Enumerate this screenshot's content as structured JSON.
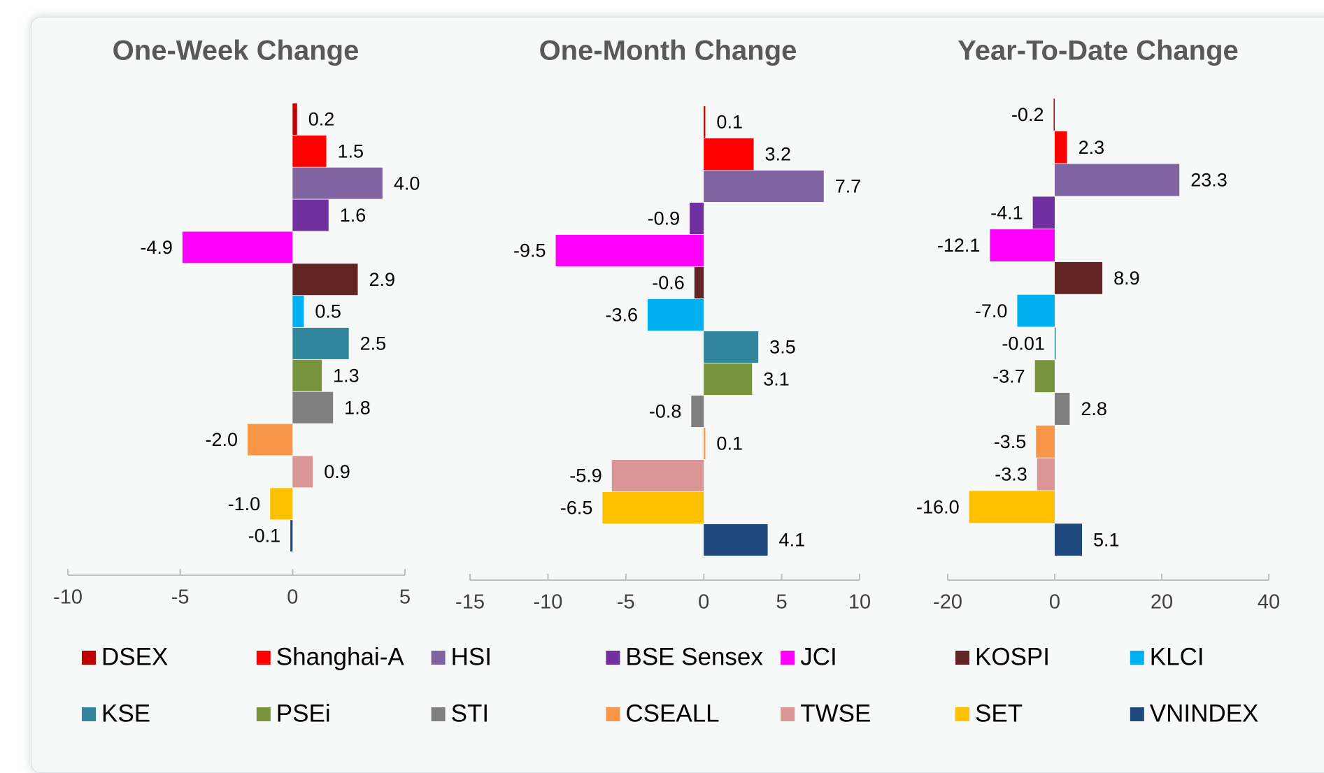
{
  "legend": {
    "items": [
      {
        "name": "DSEX",
        "color": "#c00000"
      },
      {
        "name": "Shanghai-A",
        "color": "#ff0000"
      },
      {
        "name": "HSI",
        "color": "#8064a2"
      },
      {
        "name": "BSE Sensex",
        "color": "#7030a0"
      },
      {
        "name": "JCI",
        "color": "#ff00ff"
      },
      {
        "name": "KOSPI",
        "color": "#632523"
      },
      {
        "name": "KLCI",
        "color": "#00b0f0"
      },
      {
        "name": "KSE",
        "color": "#31859c"
      },
      {
        "name": "PSEi",
        "color": "#77933c"
      },
      {
        "name": "STI",
        "color": "#7f7f7f"
      },
      {
        "name": "CSEALL",
        "color": "#f79646"
      },
      {
        "name": "TWSE",
        "color": "#d99694"
      },
      {
        "name": "SET",
        "color": "#ffc000"
      },
      {
        "name": "VNINDEX",
        "color": "#1f497d"
      }
    ]
  },
  "chart_data": [
    {
      "type": "hbar",
      "title": "One-Week Change",
      "values": [
        0.2,
        1.5,
        4.0,
        1.6,
        -4.9,
        2.9,
        0.5,
        2.5,
        1.3,
        1.8,
        -2.0,
        0.9,
        -1.0,
        -0.1
      ],
      "value_labels": [
        "0.2",
        "1.5",
        "4.0",
        "1.6",
        "-4.9",
        "2.9",
        "0.5",
        "2.5",
        "1.3",
        "1.8",
        "-2.0",
        "0.9",
        "-1.0",
        "-0.1"
      ],
      "xlim": [
        -10,
        5
      ],
      "xticks": [
        -10,
        -5,
        0,
        5
      ]
    },
    {
      "type": "hbar",
      "title": "One-Month Change",
      "values": [
        0.1,
        3.2,
        7.7,
        -0.9,
        -9.5,
        -0.6,
        -3.6,
        3.5,
        3.1,
        -0.8,
        0.1,
        -5.9,
        -6.5,
        4.1
      ],
      "value_labels": [
        "0.1",
        "3.2",
        "7.7",
        "-0.9",
        "-9.5",
        "-0.6",
        "-3.6",
        "3.5",
        "3.1",
        "-0.8",
        "0.1",
        "-5.9",
        "-6.5",
        "4.1"
      ],
      "xlim": [
        -15,
        10
      ],
      "xticks": [
        -15,
        -10,
        -5,
        0,
        5,
        10
      ]
    },
    {
      "type": "hbar",
      "title": "Year-To-Date Change",
      "values": [
        -0.2,
        2.3,
        23.3,
        -4.1,
        -12.1,
        8.9,
        -7.0,
        -0.01,
        -3.7,
        2.8,
        -3.5,
        -3.3,
        -16.0,
        5.1
      ],
      "value_labels": [
        "-0.2",
        "2.3",
        "23.3",
        "-4.1",
        "-12.1",
        "8.9",
        "-7.0",
        "-0.01",
        "-3.7",
        "2.8",
        "-3.5",
        "-3.3",
        "-16.0",
        "5.1"
      ],
      "xlim": [
        -20,
        40
      ],
      "xticks": [
        -20,
        0,
        20,
        40
      ]
    }
  ]
}
